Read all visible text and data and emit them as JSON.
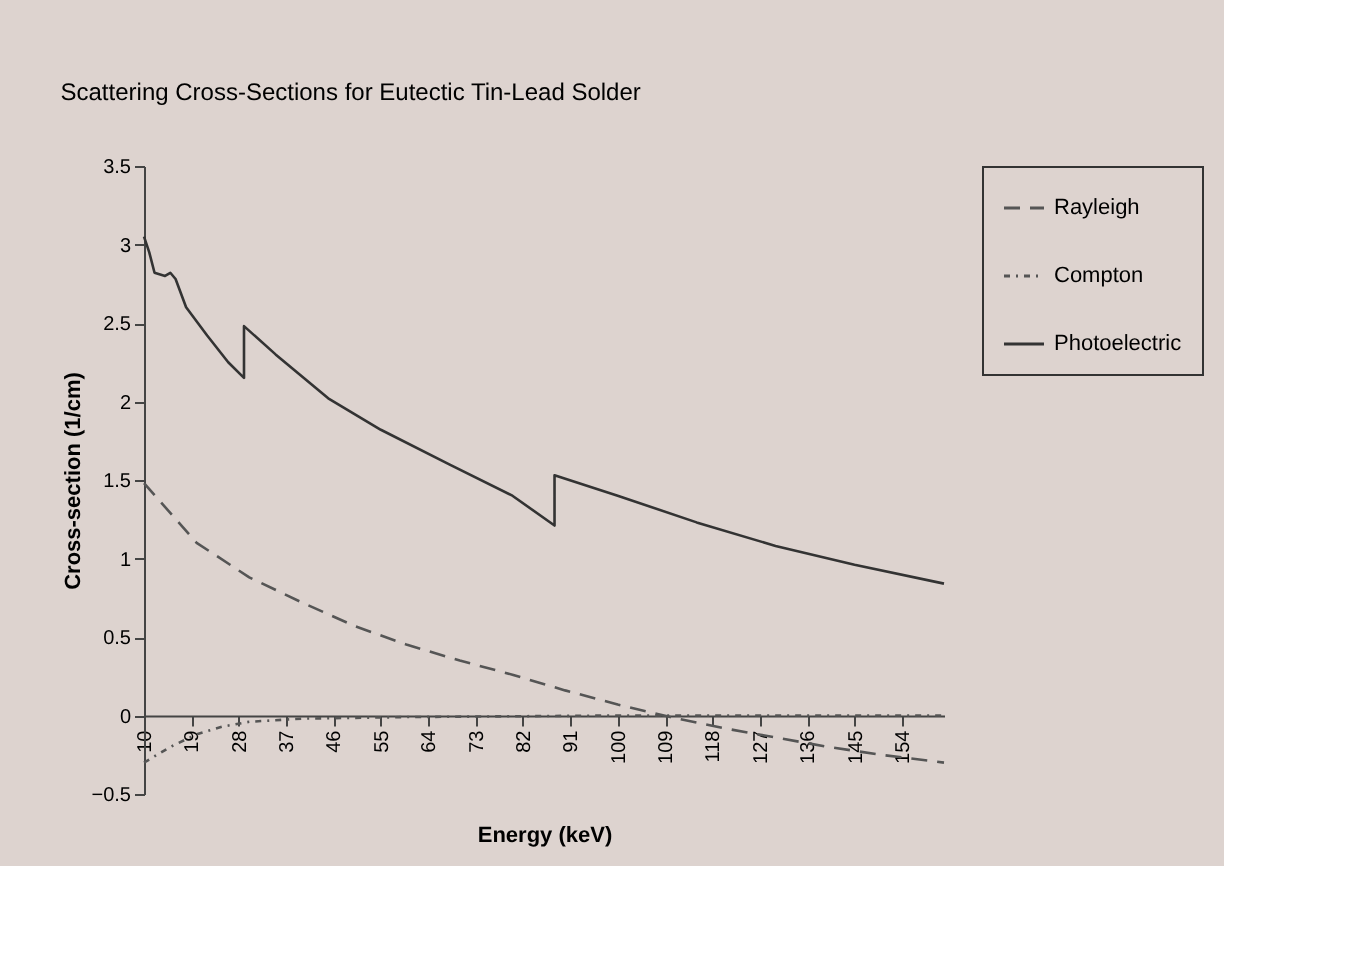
{
  "chart_data": {
    "type": "line",
    "title": "Scattering Cross-Sections for Eutectic Tin-Lead Solder",
    "xlabel": "Energy (keV)",
    "ylabel": "Cross-section (1/cm)",
    "xlim": [
      10,
      162
    ],
    "xticks": [
      10,
      19,
      28,
      37,
      46,
      55,
      64,
      73,
      82,
      91,
      100,
      109,
      118,
      127,
      136,
      145,
      154
    ],
    "ylim": [
      -0.5,
      3.5
    ],
    "yticks": [
      -0.5,
      0,
      0.5,
      1,
      1.5,
      2,
      2.5,
      3,
      3.5
    ],
    "grid": false,
    "legend": "right",
    "marker": "none",
    "series": [
      {
        "name": "Rayleigh",
        "color": "#555555",
        "line_style": "dashed",
        "x": [
          10,
          20,
          30,
          40,
          50,
          60,
          70,
          80,
          90,
          100,
          110,
          120,
          130,
          140,
          150,
          162
        ],
        "values": [
          1.48,
          1.1,
          0.88,
          0.72,
          0.57,
          0.45,
          0.35,
          0.26,
          0.16,
          0.07,
          -0.01,
          -0.08,
          -0.14,
          -0.2,
          -0.25,
          -0.3
        ]
      },
      {
        "name": "Compton",
        "color": "#555555",
        "line_style": "dotted",
        "x": [
          10,
          15,
          20,
          25,
          30,
          40,
          60,
          100,
          162
        ],
        "values": [
          -0.3,
          -0.2,
          -0.12,
          -0.07,
          -0.04,
          -0.02,
          -0.01,
          0,
          0
        ]
      },
      {
        "name": "Photoelectric",
        "color": "#333333",
        "line_style": "solid",
        "x": [
          10,
          11,
          12,
          14,
          15,
          16,
          18,
          22,
          26,
          29,
          29,
          35,
          45,
          55,
          68,
          80,
          88,
          88,
          100,
          115,
          130,
          145,
          162
        ],
        "values": [
          3.05,
          2.95,
          2.82,
          2.8,
          2.82,
          2.78,
          2.6,
          2.42,
          2.25,
          2.15,
          2.48,
          2.3,
          2.02,
          1.82,
          1.6,
          1.4,
          1.21,
          1.53,
          1.4,
          1.23,
          1.08,
          0.96,
          0.84
        ]
      }
    ]
  }
}
